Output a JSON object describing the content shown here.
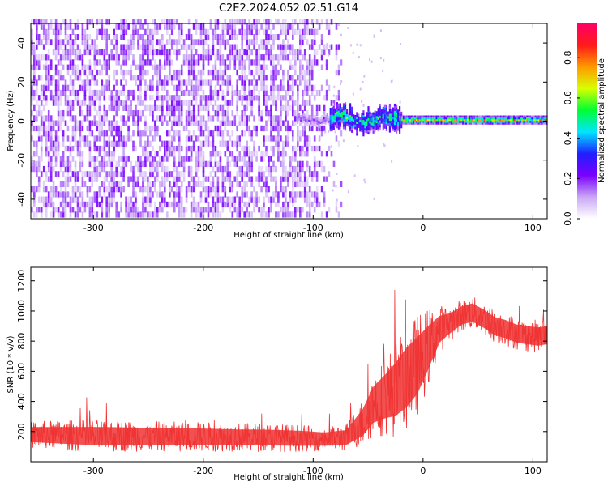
{
  "figure": {
    "title": "C2E2.2024.052.02.51.G14"
  },
  "chart_data": [
    {
      "type": "heatmap",
      "xlabel": "Height of straight line (km)",
      "ylabel": "Frequency (Hz)",
      "xlim": [
        -357,
        113
      ],
      "ylim": [
        -50,
        50
      ],
      "xticks": [
        -300,
        -200,
        -100,
        0,
        100
      ],
      "yticks": [
        -40,
        -20,
        0,
        20,
        40
      ],
      "colorbar": {
        "label": "Normalized spectral amplitude",
        "ticks": [
          0.0,
          0.2,
          0.4,
          0.6,
          0.8
        ],
        "tick_labels": [
          "0.0",
          "0.2",
          "0.4",
          "0.6",
          "0.8"
        ],
        "range": [
          0,
          0.97
        ],
        "colormap": [
          "#ffffff",
          "#c9a7f5",
          "#7a00ff",
          "#1f1fff",
          "#00e5ff",
          "#00ff33",
          "#d8ff00",
          "#ff9900",
          "#ff1a1a",
          "#ff0066"
        ]
      },
      "regions": [
        {
          "x_range": [
            -357,
            -85
          ],
          "freq_range": [
            -50,
            50
          ],
          "amplitude": 0.15,
          "pattern": "broadband noise"
        },
        {
          "x_range": [
            -85,
            -20
          ],
          "freq_range": [
            -6,
            8
          ],
          "amplitude": 0.45,
          "pattern": "noisy tone"
        },
        {
          "x_range": [
            -20,
            113
          ],
          "freq_range": [
            -1,
            1.5
          ],
          "amplitude": 0.75,
          "pattern": "narrow tone near 0 Hz"
        }
      ]
    },
    {
      "type": "line",
      "xlabel": "Height of straight line (km)",
      "ylabel": "SNR (10 * v/v)",
      "xlim": [
        -357,
        113
      ],
      "ylim": [
        0,
        1290
      ],
      "xticks": [
        -300,
        -200,
        -100,
        0,
        100
      ],
      "yticks": [
        200,
        400,
        600,
        800,
        1000,
        1200
      ],
      "color": "#f03232",
      "series": [
        {
          "x": [
            -357,
            -330,
            -300,
            -270,
            -240,
            -200,
            -170,
            -140,
            -110,
            -90,
            -70,
            -55,
            -45,
            -35,
            -25,
            -15,
            -5,
            5,
            15,
            25,
            35,
            45,
            55,
            65,
            75,
            85,
            95,
            105,
            113
          ],
          "mean": [
            180,
            175,
            170,
            170,
            168,
            165,
            162,
            160,
            155,
            150,
            160,
            260,
            380,
            430,
            480,
            560,
            640,
            760,
            880,
            920,
            970,
            990,
            950,
            900,
            880,
            850,
            840,
            830,
            840
          ],
          "spread": [
            90,
            100,
            110,
            105,
            100,
            100,
            95,
            95,
            90,
            80,
            90,
            160,
            220,
            260,
            320,
            360,
            340,
            260,
            160,
            120,
            110,
            110,
            110,
            110,
            110,
            110,
            110,
            110,
            110
          ]
        }
      ]
    }
  ]
}
